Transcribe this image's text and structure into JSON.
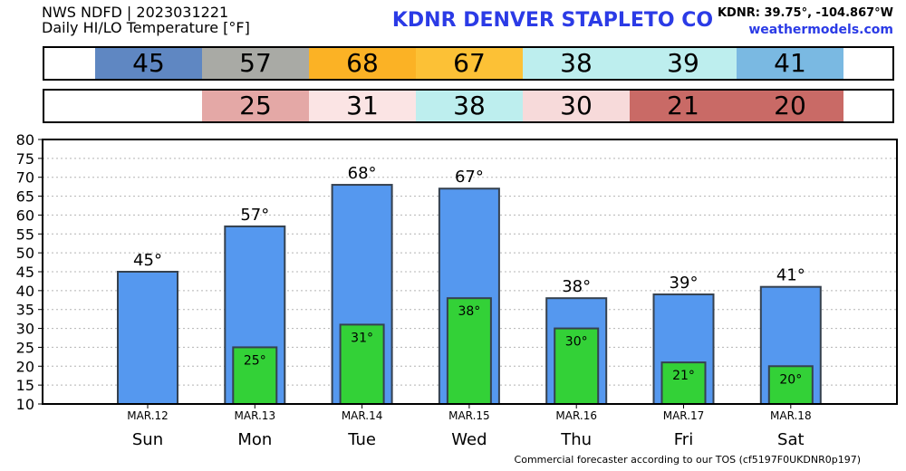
{
  "header": {
    "line1": "NWS NDFD | 2023031221",
    "line2": "Daily HI/LO Temperature [°F]",
    "title": "KDNR   DENVER STAPLETO CO",
    "coords": "KDNR: 39.75°, -104.867°W",
    "site": "weathermodels.com"
  },
  "strips": {
    "hi": [
      {
        "text": "45",
        "color": "#5f87c2"
      },
      {
        "text": "57",
        "color": "#a9aaa5"
      },
      {
        "text": "68",
        "color": "#fbb225"
      },
      {
        "text": "67",
        "color": "#fcc136"
      },
      {
        "text": "38",
        "color": "#bdeeee"
      },
      {
        "text": "39",
        "color": "#bdeeee"
      },
      {
        "text": "41",
        "color": "#7ab9e2"
      }
    ],
    "lo": [
      {
        "text": "",
        "color": "#ffffff"
      },
      {
        "text": "25",
        "color": "#e4a8a6"
      },
      {
        "text": "31",
        "color": "#fbe4e4"
      },
      {
        "text": "38",
        "color": "#bdeeee"
      },
      {
        "text": "30",
        "color": "#f7dada"
      },
      {
        "text": "21",
        "color": "#c96a66"
      },
      {
        "text": "20",
        "color": "#c96a66"
      }
    ]
  },
  "chart_data": {
    "type": "bar",
    "categories": [
      "Sun",
      "Mon",
      "Tue",
      "Wed",
      "Thu",
      "Fri",
      "Sat"
    ],
    "dates": [
      "MAR.12",
      "MAR.13",
      "MAR.14",
      "MAR.15",
      "MAR.16",
      "MAR.17",
      "MAR.18"
    ],
    "series": [
      {
        "values": [
          45,
          57,
          68,
          67,
          38,
          39,
          41
        ],
        "labels": [
          "45°",
          "57°",
          "68°",
          "67°",
          "38°",
          "39°",
          "41°"
        ],
        "color": "#5598ef"
      },
      {
        "values": [
          null,
          25,
          31,
          38,
          30,
          21,
          20
        ],
        "labels": [
          "",
          "25°",
          "31°",
          "38°",
          "30°",
          "21°",
          "20°"
        ],
        "color": "#33d137"
      }
    ],
    "yticks": [
      "10",
      "15",
      "20",
      "25",
      "30",
      "35",
      "40",
      "45",
      "50",
      "55",
      "60",
      "65",
      "70",
      "75",
      "80"
    ],
    "ylim": [
      10,
      80
    ],
    "grid": true
  },
  "footer": "Commercial forecaster according to our TOS (cf5197F0UKDNR0p197)"
}
